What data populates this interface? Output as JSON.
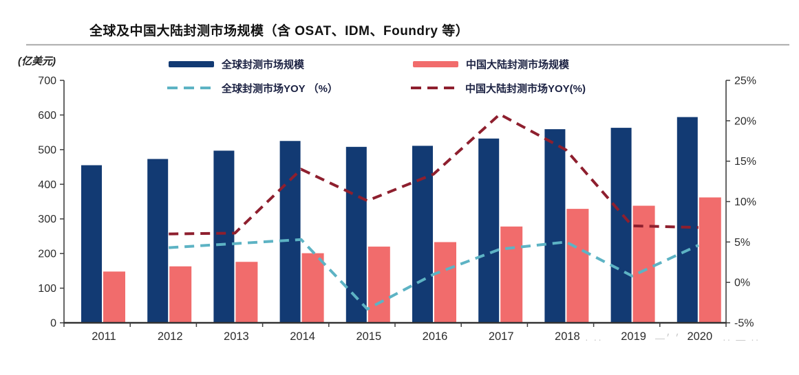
{
  "title": "全球及中国大陆封测市场规模（含 OSAT、IDM、Foundry 等）",
  "chart_data": {
    "type": "combo-bar-line",
    "title": "全球及中国大陆封测市场规模（含 OSAT、IDM、Foundry 等）",
    "categories": [
      "2011",
      "2012",
      "2013",
      "2014",
      "2015",
      "2016",
      "2017",
      "2018",
      "2019",
      "2020"
    ],
    "series": [
      {
        "name": "全球封测市场规模",
        "chart": "bar",
        "axis": "left",
        "color": "#123a73",
        "values": [
          455,
          473,
          497,
          525,
          508,
          511,
          532,
          559,
          563,
          594
        ]
      },
      {
        "name": "中国大陆封测市场规模",
        "chart": "bar",
        "axis": "left",
        "color": "#f16c6c",
        "values": [
          148,
          163,
          176,
          201,
          220,
          233,
          278,
          329,
          338,
          362
        ]
      },
      {
        "name": "全球封测市场YOY （%）",
        "chart": "line",
        "axis": "right",
        "color": "#5db3c4",
        "values": [
          null,
          4.3,
          4.8,
          5.3,
          -3.3,
          1.0,
          4.1,
          5.0,
          0.8,
          4.6
        ]
      },
      {
        "name": "中国大陆封测市场YOY(%)",
        "chart": "line",
        "axis": "right",
        "color": "#8e1f2e",
        "values": [
          null,
          6.0,
          6.1,
          14.0,
          10.1,
          13.4,
          20.8,
          16.4,
          7.0,
          6.8
        ]
      }
    ],
    "left_axis": {
      "unit": "(亿美元)",
      "min": 0,
      "max": 700,
      "tick_labels": [
        "700",
        "600",
        "500",
        "400",
        "300",
        "200",
        "100",
        "0"
      ]
    },
    "right_axis": {
      "min": -5,
      "max": 25,
      "tick_labels": [
        "25%",
        "20%",
        "15%",
        "10%",
        "5%",
        "0%",
        "-5%"
      ]
    },
    "legend_position": "top",
    "grid": false
  },
  "watermark": {
    "part1": "· ··",
    "part2": "—׳ ׳",
    "part3": "·· — ··"
  },
  "colors": {
    "axis": "#3f3f3f",
    "tick_text": "#2b2b2b",
    "baseline": "#333333"
  }
}
